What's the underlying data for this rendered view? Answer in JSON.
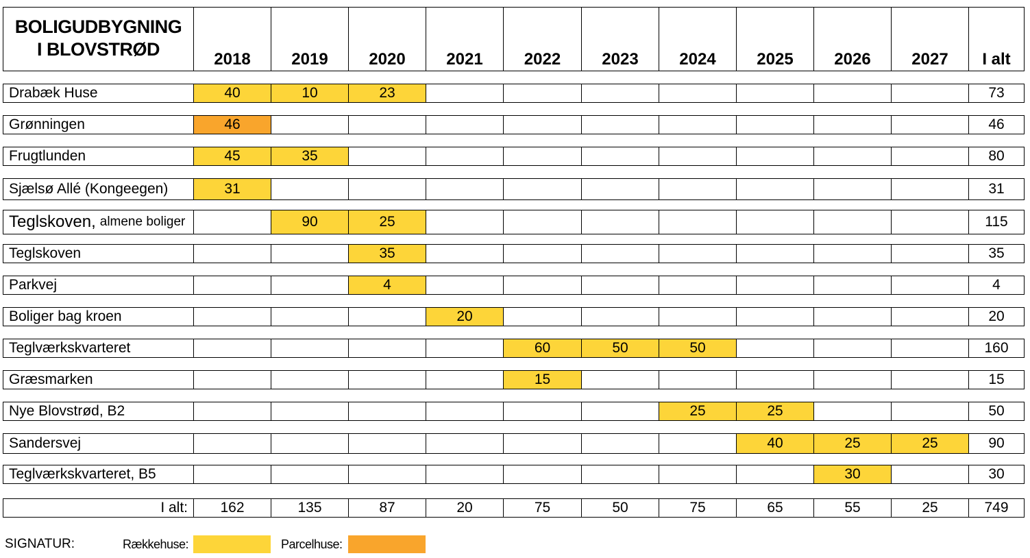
{
  "title": [
    "BOLIGUDBYGNING",
    "I BLOVSTRØD"
  ],
  "years": [
    "2018",
    "2019",
    "2020",
    "2021",
    "2022",
    "2023",
    "2024",
    "2025",
    "2026",
    "2027"
  ],
  "total_header": "I alt",
  "colors": {
    "raekkehuse": "#FDD539",
    "parcelhuse": "#F9A52C",
    "border": "#000000",
    "background": "#FFFFFF"
  },
  "rows": [
    {
      "name": "Drabæk Huse",
      "name_suffix": "",
      "cells": [
        {
          "v": "40",
          "t": "r"
        },
        {
          "v": "10",
          "t": "r"
        },
        {
          "v": "23",
          "t": "r"
        },
        {
          "v": "",
          "t": ""
        },
        {
          "v": "",
          "t": ""
        },
        {
          "v": "",
          "t": ""
        },
        {
          "v": "",
          "t": ""
        },
        {
          "v": "",
          "t": ""
        },
        {
          "v": "",
          "t": ""
        },
        {
          "v": "",
          "t": ""
        }
      ],
      "total": "73"
    },
    {
      "name": "Grønningen",
      "name_suffix": "",
      "cells": [
        {
          "v": "46",
          "t": "p"
        },
        {
          "v": "",
          "t": ""
        },
        {
          "v": "",
          "t": ""
        },
        {
          "v": "",
          "t": ""
        },
        {
          "v": "",
          "t": ""
        },
        {
          "v": "",
          "t": ""
        },
        {
          "v": "",
          "t": ""
        },
        {
          "v": "",
          "t": ""
        },
        {
          "v": "",
          "t": ""
        },
        {
          "v": "",
          "t": ""
        }
      ],
      "total": "46"
    },
    {
      "name": "Frugtlunden",
      "name_suffix": "",
      "cells": [
        {
          "v": "45",
          "t": "r"
        },
        {
          "v": "35",
          "t": "r"
        },
        {
          "v": "",
          "t": ""
        },
        {
          "v": "",
          "t": ""
        },
        {
          "v": "",
          "t": ""
        },
        {
          "v": "",
          "t": ""
        },
        {
          "v": "",
          "t": ""
        },
        {
          "v": "",
          "t": ""
        },
        {
          "v": "",
          "t": ""
        },
        {
          "v": "",
          "t": ""
        }
      ],
      "total": "80"
    },
    {
      "name": "Sjælsø Allé (Kongeegen)",
      "name_suffix": "",
      "cells": [
        {
          "v": "31",
          "t": "r"
        },
        {
          "v": "",
          "t": ""
        },
        {
          "v": "",
          "t": ""
        },
        {
          "v": "",
          "t": ""
        },
        {
          "v": "",
          "t": ""
        },
        {
          "v": "",
          "t": ""
        },
        {
          "v": "",
          "t": ""
        },
        {
          "v": "",
          "t": ""
        },
        {
          "v": "",
          "t": ""
        },
        {
          "v": "",
          "t": ""
        }
      ],
      "total": "31"
    },
    {
      "name": "Teglskoven,",
      "name_suffix": "almene boliger",
      "cells": [
        {
          "v": "",
          "t": ""
        },
        {
          "v": "90",
          "t": "r"
        },
        {
          "v": "25",
          "t": "r"
        },
        {
          "v": "",
          "t": ""
        },
        {
          "v": "",
          "t": ""
        },
        {
          "v": "",
          "t": ""
        },
        {
          "v": "",
          "t": ""
        },
        {
          "v": "",
          "t": ""
        },
        {
          "v": "",
          "t": ""
        },
        {
          "v": "",
          "t": ""
        }
      ],
      "total": "115"
    },
    {
      "name": "Teglskoven",
      "name_suffix": "",
      "cells": [
        {
          "v": "",
          "t": ""
        },
        {
          "v": "",
          "t": ""
        },
        {
          "v": "35",
          "t": "r"
        },
        {
          "v": "",
          "t": ""
        },
        {
          "v": "",
          "t": ""
        },
        {
          "v": "",
          "t": ""
        },
        {
          "v": "",
          "t": ""
        },
        {
          "v": "",
          "t": ""
        },
        {
          "v": "",
          "t": ""
        },
        {
          "v": "",
          "t": ""
        }
      ],
      "total": "35"
    },
    {
      "name": "Parkvej",
      "name_suffix": "",
      "cells": [
        {
          "v": "",
          "t": ""
        },
        {
          "v": "",
          "t": ""
        },
        {
          "v": "4",
          "t": "r"
        },
        {
          "v": "",
          "t": ""
        },
        {
          "v": "",
          "t": ""
        },
        {
          "v": "",
          "t": ""
        },
        {
          "v": "",
          "t": ""
        },
        {
          "v": "",
          "t": ""
        },
        {
          "v": "",
          "t": ""
        },
        {
          "v": "",
          "t": ""
        }
      ],
      "total": "4"
    },
    {
      "name": "Boliger bag kroen",
      "name_suffix": "",
      "cells": [
        {
          "v": "",
          "t": ""
        },
        {
          "v": "",
          "t": ""
        },
        {
          "v": "",
          "t": ""
        },
        {
          "v": "20",
          "t": "r"
        },
        {
          "v": "",
          "t": ""
        },
        {
          "v": "",
          "t": ""
        },
        {
          "v": "",
          "t": ""
        },
        {
          "v": "",
          "t": ""
        },
        {
          "v": "",
          "t": ""
        },
        {
          "v": "",
          "t": ""
        }
      ],
      "total": "20"
    },
    {
      "name": "Teglværkskvarteret",
      "name_suffix": "",
      "cells": [
        {
          "v": "",
          "t": ""
        },
        {
          "v": "",
          "t": ""
        },
        {
          "v": "",
          "t": ""
        },
        {
          "v": "",
          "t": ""
        },
        {
          "v": "60",
          "t": "r"
        },
        {
          "v": "50",
          "t": "r"
        },
        {
          "v": "50",
          "t": "r"
        },
        {
          "v": "",
          "t": ""
        },
        {
          "v": "",
          "t": ""
        },
        {
          "v": "",
          "t": ""
        }
      ],
      "total": "160"
    },
    {
      "name": "Græsmarken",
      "name_suffix": "",
      "cells": [
        {
          "v": "",
          "t": ""
        },
        {
          "v": "",
          "t": ""
        },
        {
          "v": "",
          "t": ""
        },
        {
          "v": "",
          "t": ""
        },
        {
          "v": "15",
          "t": "r"
        },
        {
          "v": "",
          "t": ""
        },
        {
          "v": "",
          "t": ""
        },
        {
          "v": "",
          "t": ""
        },
        {
          "v": "",
          "t": ""
        },
        {
          "v": "",
          "t": ""
        }
      ],
      "total": "15"
    },
    {
      "name": "Nye Blovstrød, B2",
      "name_suffix": "",
      "cells": [
        {
          "v": "",
          "t": ""
        },
        {
          "v": "",
          "t": ""
        },
        {
          "v": "",
          "t": ""
        },
        {
          "v": "",
          "t": ""
        },
        {
          "v": "",
          "t": ""
        },
        {
          "v": "",
          "t": ""
        },
        {
          "v": "25",
          "t": "r"
        },
        {
          "v": "25",
          "t": "r"
        },
        {
          "v": "",
          "t": ""
        },
        {
          "v": "",
          "t": ""
        }
      ],
      "total": "50"
    },
    {
      "name": "Sandersvej",
      "name_suffix": "",
      "cells": [
        {
          "v": "",
          "t": ""
        },
        {
          "v": "",
          "t": ""
        },
        {
          "v": "",
          "t": ""
        },
        {
          "v": "",
          "t": ""
        },
        {
          "v": "",
          "t": ""
        },
        {
          "v": "",
          "t": ""
        },
        {
          "v": "",
          "t": ""
        },
        {
          "v": "40",
          "t": "r"
        },
        {
          "v": "25",
          "t": "r"
        },
        {
          "v": "25",
          "t": "r"
        }
      ],
      "total": "90"
    },
    {
      "name": "Teglværkskvarteret, B5",
      "name_suffix": "",
      "cells": [
        {
          "v": "",
          "t": ""
        },
        {
          "v": "",
          "t": ""
        },
        {
          "v": "",
          "t": ""
        },
        {
          "v": "",
          "t": ""
        },
        {
          "v": "",
          "t": ""
        },
        {
          "v": "",
          "t": ""
        },
        {
          "v": "",
          "t": ""
        },
        {
          "v": "",
          "t": ""
        },
        {
          "v": "30",
          "t": "r"
        },
        {
          "v": "",
          "t": ""
        }
      ],
      "total": "30"
    }
  ],
  "totals": {
    "label": "I alt:",
    "values": [
      "162",
      "135",
      "87",
      "20",
      "75",
      "50",
      "75",
      "65",
      "55",
      "25"
    ],
    "grand_total": "749"
  },
  "legend": {
    "signatur_label": "SIGNATUR:",
    "raekkehuse_label": "Rækkehuse:",
    "parcelhuse_label": "Parcelhuse:"
  }
}
